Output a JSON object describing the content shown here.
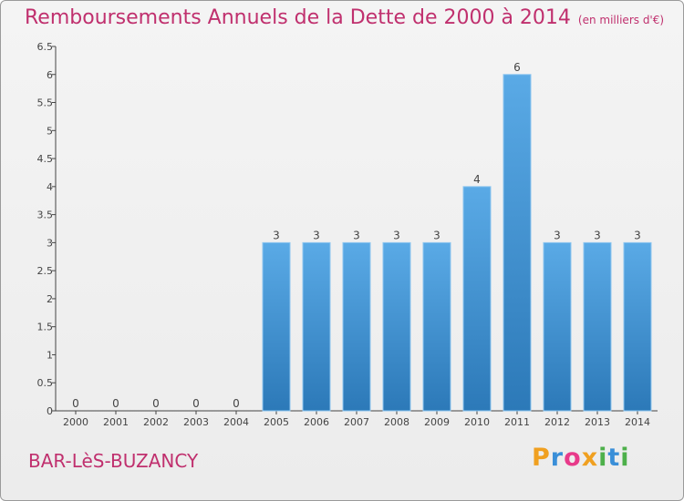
{
  "header": {
    "title": "Remboursements Annuels de la Dette de 2000 à 2014",
    "unit_note": "(en milliers d'€)"
  },
  "footer": {
    "city": "BAR-LèS-BUZANCY",
    "brand_letters": [
      "P",
      "r",
      "o",
      "x",
      "i",
      "t",
      "i"
    ],
    "brand_colors": [
      "#f0a020",
      "#3a8fd8",
      "#e83a8a",
      "#f0a020",
      "#4db04a",
      "#3a8fd8",
      "#4db04a"
    ]
  },
  "chart_data": {
    "type": "bar",
    "title": "Remboursements Annuels de la Dette de 2000 à 2014",
    "categories": [
      "2000",
      "2001",
      "2002",
      "2003",
      "2004",
      "2005",
      "2006",
      "2007",
      "2008",
      "2009",
      "2010",
      "2011",
      "2012",
      "2013",
      "2014"
    ],
    "values": [
      0,
      0,
      0,
      0,
      0,
      3,
      3,
      3,
      3,
      3,
      4,
      6,
      3,
      3,
      3
    ],
    "data_labels": [
      "0",
      "0",
      "0",
      "0",
      "0",
      "3",
      "3",
      "3",
      "3",
      "3",
      "4",
      "6",
      "3",
      "3",
      "3"
    ],
    "yticks": [
      "0",
      "0.5",
      "1",
      "1.5",
      "2",
      "2.5",
      "3",
      "3.5",
      "4",
      "4.5",
      "5",
      "5.5",
      "6",
      "6.5"
    ],
    "ylim": [
      0,
      6.5
    ],
    "grid": false,
    "legend": "none",
    "colors": {
      "bar_top": "#5aaae6",
      "bar_bottom": "#2c79b8",
      "axis": "#444444",
      "text": "#444444"
    }
  }
}
